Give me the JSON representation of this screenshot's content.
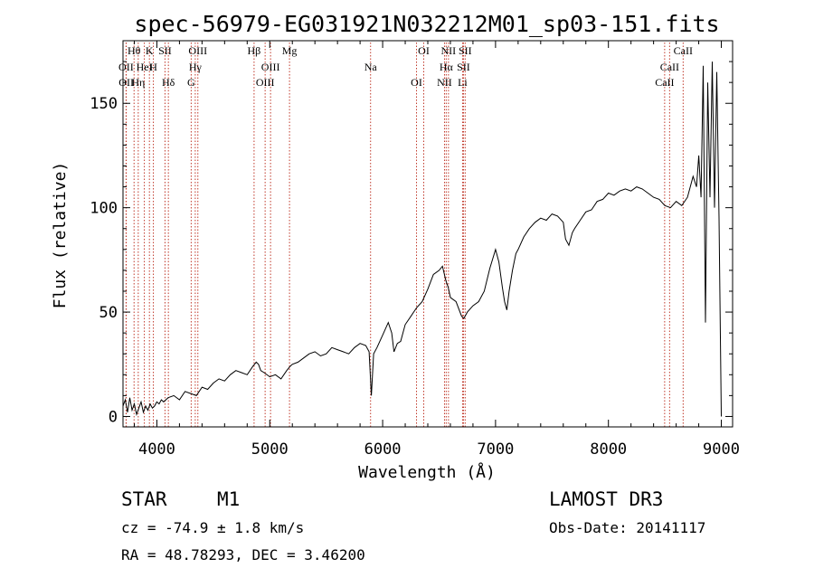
{
  "chart_data": {
    "type": "line",
    "title": "spec-56979-EG031921N032212M01_sp03-151.fits",
    "xlabel": "Wavelength (Å)",
    "ylabel": "Flux (relative)",
    "xlim": [
      3700,
      9100
    ],
    "ylim": [
      -5,
      180
    ],
    "xticks": [
      4000,
      5000,
      6000,
      7000,
      8000,
      9000
    ],
    "yticks": [
      0,
      50,
      100,
      150
    ],
    "grid": false,
    "series": [
      {
        "name": "flux",
        "x": [
          3700,
          3720,
          3740,
          3760,
          3780,
          3800,
          3820,
          3840,
          3860,
          3880,
          3900,
          3920,
          3940,
          3960,
          3980,
          4000,
          4020,
          4040,
          4060,
          4080,
          4100,
          4150,
          4200,
          4250,
          4300,
          4350,
          4400,
          4450,
          4500,
          4550,
          4600,
          4650,
          4700,
          4750,
          4800,
          4850,
          4880,
          4900,
          4920,
          4950,
          5000,
          5050,
          5100,
          5150,
          5180,
          5200,
          5250,
          5300,
          5350,
          5400,
          5450,
          5500,
          5550,
          5600,
          5650,
          5700,
          5750,
          5800,
          5850,
          5880,
          5900,
          5920,
          5950,
          6000,
          6050,
          6080,
          6100,
          6130,
          6160,
          6200,
          6250,
          6300,
          6350,
          6400,
          6450,
          6500,
          6530,
          6560,
          6580,
          6600,
          6650,
          6700,
          6720,
          6750,
          6800,
          6850,
          6900,
          6950,
          7000,
          7030,
          7060,
          7080,
          7100,
          7120,
          7150,
          7180,
          7200,
          7250,
          7300,
          7350,
          7400,
          7450,
          7500,
          7550,
          7600,
          7620,
          7650,
          7680,
          7700,
          7750,
          7800,
          7850,
          7900,
          7950,
          8000,
          8050,
          8100,
          8150,
          8200,
          8250,
          8300,
          8350,
          8400,
          8450,
          8500,
          8550,
          8600,
          8650,
          8700,
          8750,
          8780,
          8800,
          8820,
          8840,
          8860,
          8880,
          8900,
          8920,
          8940,
          8960,
          8980,
          9000
        ],
        "y": [
          5,
          8,
          2,
          9,
          3,
          6,
          1,
          4,
          7,
          2,
          5,
          3,
          6,
          4,
          5,
          7,
          6,
          8,
          7,
          8,
          9,
          10,
          8,
          12,
          11,
          10,
          14,
          13,
          16,
          18,
          17,
          20,
          22,
          21,
          20,
          24,
          26,
          25,
          22,
          21,
          19,
          20,
          18,
          22,
          24,
          25,
          26,
          28,
          30,
          31,
          29,
          30,
          33,
          32,
          31,
          30,
          33,
          35,
          34,
          31,
          10,
          30,
          33,
          39,
          45,
          40,
          31,
          35,
          36,
          44,
          48,
          52,
          55,
          61,
          68,
          70,
          72,
          65,
          62,
          57,
          55,
          48,
          47,
          50,
          53,
          55,
          60,
          71,
          80,
          74,
          62,
          55,
          51,
          60,
          70,
          78,
          80,
          86,
          90,
          93,
          95,
          94,
          97,
          96,
          93,
          85,
          82,
          88,
          90,
          94,
          98,
          99,
          103,
          104,
          107,
          106,
          108,
          109,
          108,
          110,
          109,
          107,
          105,
          104,
          101,
          100,
          103,
          101,
          105,
          115,
          110,
          125,
          105,
          168,
          45,
          160,
          105,
          170,
          100,
          165,
          95,
          0
        ]
      }
    ],
    "line_labels": [
      {
        "label": "Hθ",
        "wavelength": 3798
      },
      {
        "label": "OII",
        "wavelength": 3727
      },
      {
        "label": "OII",
        "wavelength": 3729
      },
      {
        "label": "K",
        "wavelength": 3934
      },
      {
        "label": "HeI",
        "wavelength": 3889
      },
      {
        "label": "Hη",
        "wavelength": 3835
      },
      {
        "label": "SII",
        "wavelength": 4072
      },
      {
        "label": "H",
        "wavelength": 3969
      },
      {
        "label": "Hδ",
        "wavelength": 4102
      },
      {
        "label": "OIII",
        "wavelength": 4363
      },
      {
        "label": "Hγ",
        "wavelength": 4340
      },
      {
        "label": "G",
        "wavelength": 4304
      },
      {
        "label": "Hβ",
        "wavelength": 4861
      },
      {
        "label": "OIII",
        "wavelength": 5007
      },
      {
        "label": "OIII",
        "wavelength": 4959
      },
      {
        "label": "Mg",
        "wavelength": 5175
      },
      {
        "label": "Na",
        "wavelength": 5893
      },
      {
        "label": "OI",
        "wavelength": 6300
      },
      {
        "label": "OI",
        "wavelength": 6364
      },
      {
        "label": "Hα",
        "wavelength": 6563
      },
      {
        "label": "NII",
        "wavelength": 6548
      },
      {
        "label": "NII",
        "wavelength": 6583
      },
      {
        "label": "SII",
        "wavelength": 6716
      },
      {
        "label": "Li",
        "wavelength": 6708
      },
      {
        "label": "SII",
        "wavelength": 6731
      },
      {
        "label": "CaII",
        "wavelength": 8542
      },
      {
        "label": "CaII",
        "wavelength": 8498
      },
      {
        "label": "CaII",
        "wavelength": 8662
      }
    ]
  },
  "info": {
    "object_class": "STAR",
    "subclass": "M1",
    "redshift_text": "cz = -74.9 ± 1.8 km/s",
    "coords_text": "RA =  48.78293, DEC =   3.46200",
    "survey": "LAMOST DR3",
    "obs_date": "Obs-Date: 20141117"
  }
}
